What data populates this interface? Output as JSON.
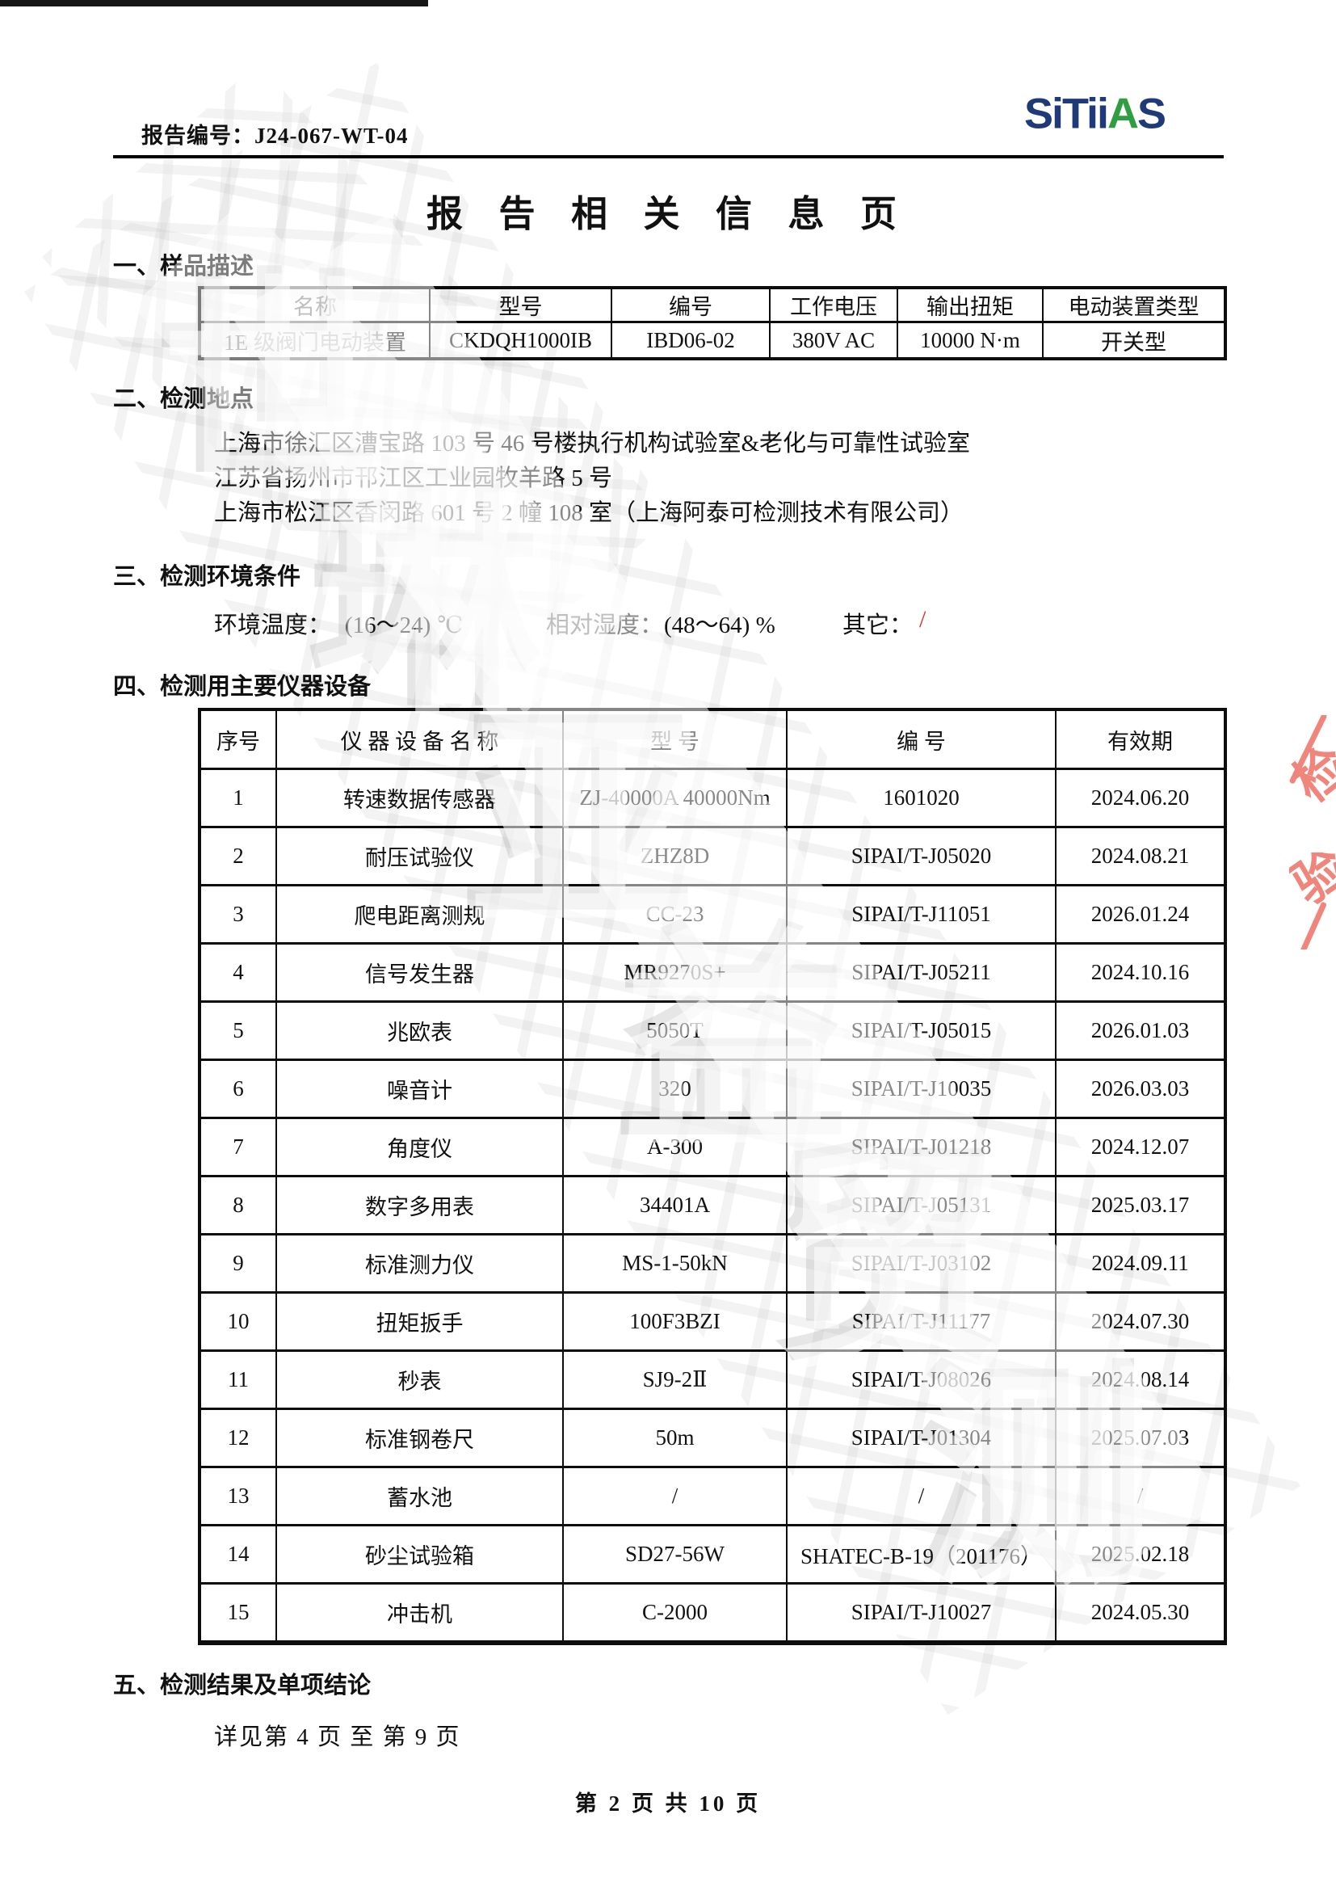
{
  "header": {
    "report_label": "报告编号：",
    "report_number": "J24-067-WT-04",
    "logo": {
      "part1": "SiTii",
      "part2": "A",
      "part3": "S"
    }
  },
  "title": "报 告 相 关 信 息 页",
  "section1": {
    "heading": "一、样品描述",
    "table": {
      "headers": [
        "名称",
        "型号",
        "编号",
        "工作电压",
        "输出扭矩",
        "电动装置类型"
      ],
      "rows": [
        [
          "1E 级阀门电动装置",
          "CKDQH1000IB",
          "IBD06-02",
          "380V AC",
          "10000 N·m",
          "开关型"
        ]
      ]
    }
  },
  "section2": {
    "heading": "二、检测地点",
    "addresses": [
      "上海市徐汇区漕宝路 103 号 46 号楼执行机构试验室&老化与可靠性试验室",
      "江苏省扬州市邗江区工业园牧羊路 5 号",
      "上海市松江区香闵路 601 号 2 幢 108 室（上海阿泰可检测技术有限公司）"
    ]
  },
  "section3": {
    "heading": "三、检测环境条件",
    "temperature_label": "环境温度：",
    "temperature_value": "(16～24) ℃",
    "humidity_label": "相对湿度：",
    "humidity_value": "(48～64) %",
    "other_label": "其它：",
    "other_value": "/"
  },
  "section4": {
    "heading": "四、检测用主要仪器设备",
    "table": {
      "headers": [
        "序号",
        "仪 器 设 备 名 称",
        "型 号",
        "编 号",
        "有效期"
      ],
      "rows": [
        [
          "1",
          "转速数据传感器",
          "ZJ-40000A 40000Nm",
          "1601020",
          "2024.06.20"
        ],
        [
          "2",
          "耐压试验仪",
          "ZHZ8D",
          "SIPAI/T-J05020",
          "2024.08.21"
        ],
        [
          "3",
          "爬电距离测规",
          "CC-23",
          "SIPAI/T-J11051",
          "2026.01.24"
        ],
        [
          "4",
          "信号发生器",
          "MR9270S+",
          "SIPAI/T-J05211",
          "2024.10.16"
        ],
        [
          "5",
          "兆欧表",
          "5050T",
          "SIPAI/T-J05015",
          "2026.01.03"
        ],
        [
          "6",
          "噪音计",
          "320",
          "SIPAI/T-J10035",
          "2026.03.03"
        ],
        [
          "7",
          "角度仪",
          "A-300",
          "SIPAI/T-J01218",
          "2024.12.07"
        ],
        [
          "8",
          "数字多用表",
          "34401A",
          "SIPAI/T-J05131",
          "2025.03.17"
        ],
        [
          "9",
          "标准测力仪",
          "MS-1-50kN",
          "SIPAI/T-J03102",
          "2024.09.11"
        ],
        [
          "10",
          "扭矩扳手",
          "100F3BZI",
          "SIPAI/T-J11177",
          "2024.07.30"
        ],
        [
          "11",
          "秒表",
          "SJ9-2Ⅱ",
          "SIPAI/T-J08026",
          "2024.08.14"
        ],
        [
          "12",
          "标准钢卷尺",
          "50m",
          "SIPAI/T-J01304",
          "2025.07.03"
        ],
        [
          "13",
          "蓄水池",
          "/",
          "/",
          "/"
        ],
        [
          "14",
          "砂尘试验箱",
          "SD27-56W",
          "SHATEC-B-19（201176）",
          "2025.02.18"
        ],
        [
          "15",
          "冲击机",
          "C-2000",
          "SIPAI/T-J10027",
          "2024.05.30"
        ]
      ]
    }
  },
  "section5": {
    "heading": "五、检测结果及单项结论",
    "note": "详见第 4 页 至 第 9 页"
  },
  "footer": {
    "page_indicator": "第 2 页 共 10 页"
  },
  "watermark": {
    "diagonal_chars": [
      "世",
      "琳",
      "亚",
      "益",
      "贸",
      "测"
    ],
    "stamp_fragment_chars": [
      "检",
      "验"
    ]
  },
  "colors": {
    "logo_navy": "#1e3a78",
    "logo_green": "#2f9e41",
    "red_slash": "#d93025",
    "stamp_red": "#f0857b",
    "watermark_gray": "#a5a5a5"
  }
}
